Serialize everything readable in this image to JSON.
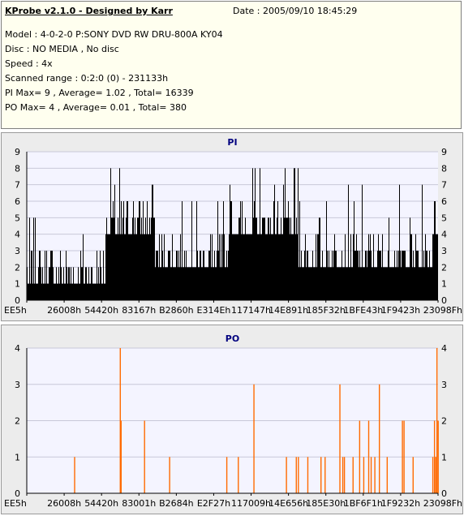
{
  "header": {
    "title": "KProbe v2.1.0 - Designed by Karr",
    "date": "Date : 2005/09/10 18:45:29",
    "lines": [
      "Model : 4-0-2-0 P:SONY    DVD RW DRU-800A  KY04",
      "Disc : NO MEDIA , No disc",
      "Speed : 4x",
      "Scanned range : 0:2:0 (0) - 231133h",
      "PI Max= 9 , Average= 1.02 , Total= 16339",
      "PO Max= 4 , Average= 0.01 , Total= 380"
    ]
  },
  "chart_data": [
    {
      "type": "bar",
      "title": "PI",
      "ylim": [
        0,
        9
      ],
      "y_ticks": [
        0,
        1,
        2,
        3,
        4,
        5,
        6,
        7,
        8,
        9
      ],
      "x_tick_labels": [
        "EE5h",
        "26008h",
        "54420h",
        "83167h",
        "B2860h",
        "E314Eh",
        "117147h",
        "14E891h",
        "185F32h",
        "1BFE43h",
        "1F9423h",
        "23098Fh"
      ],
      "grid": true,
      "color": "#000000",
      "background": "#f4f4ff",
      "segments": [
        {
          "from": 0.0,
          "to": 0.19,
          "base": 1,
          "max": 5
        },
        {
          "from": 0.19,
          "to": 0.31,
          "base": 4,
          "max": 8
        },
        {
          "from": 0.31,
          "to": 0.49,
          "base": 2,
          "max": 6
        },
        {
          "from": 0.49,
          "to": 0.66,
          "base": 4,
          "max": 8
        },
        {
          "from": 0.66,
          "to": 0.985,
          "base": 2,
          "max": 7
        },
        {
          "from": 0.985,
          "to": 1.0,
          "base": 4,
          "max": 8
        }
      ]
    },
    {
      "type": "bar",
      "title": "PO",
      "ylim": [
        0,
        4
      ],
      "y_ticks": [
        0,
        1,
        2,
        3,
        4
      ],
      "x_tick_labels": [
        "EE5h",
        "26008h",
        "54420h",
        "83001h",
        "B2684h",
        "E2F27h",
        "117009h",
        "14E656h",
        "185E30h",
        "1BF6F1h",
        "1F9232h",
        "23098Fh"
      ],
      "grid": true,
      "color": "#ff6a00",
      "background": "#f4f4ff",
      "bars": [
        {
          "x": 0.115,
          "v": 1
        },
        {
          "x": 0.226,
          "v": 4
        },
        {
          "x": 0.228,
          "v": 2
        },
        {
          "x": 0.285,
          "v": 2
        },
        {
          "x": 0.346,
          "v": 1
        },
        {
          "x": 0.485,
          "v": 1
        },
        {
          "x": 0.513,
          "v": 1
        },
        {
          "x": 0.551,
          "v": 3
        },
        {
          "x": 0.63,
          "v": 1
        },
        {
          "x": 0.654,
          "v": 1
        },
        {
          "x": 0.659,
          "v": 1
        },
        {
          "x": 0.682,
          "v": 1
        },
        {
          "x": 0.714,
          "v": 1
        },
        {
          "x": 0.724,
          "v": 1
        },
        {
          "x": 0.76,
          "v": 3
        },
        {
          "x": 0.767,
          "v": 1
        },
        {
          "x": 0.771,
          "v": 1
        },
        {
          "x": 0.792,
          "v": 1
        },
        {
          "x": 0.808,
          "v": 2
        },
        {
          "x": 0.818,
          "v": 1
        },
        {
          "x": 0.83,
          "v": 2
        },
        {
          "x": 0.836,
          "v": 1
        },
        {
          "x": 0.845,
          "v": 1
        },
        {
          "x": 0.856,
          "v": 3
        },
        {
          "x": 0.875,
          "v": 1
        },
        {
          "x": 0.912,
          "v": 2
        },
        {
          "x": 0.916,
          "v": 2
        },
        {
          "x": 0.938,
          "v": 1
        },
        {
          "x": 0.986,
          "v": 1
        },
        {
          "x": 0.99,
          "v": 2
        },
        {
          "x": 0.993,
          "v": 1
        },
        {
          "x": 0.996,
          "v": 4
        },
        {
          "x": 0.999,
          "v": 2
        }
      ]
    }
  ]
}
